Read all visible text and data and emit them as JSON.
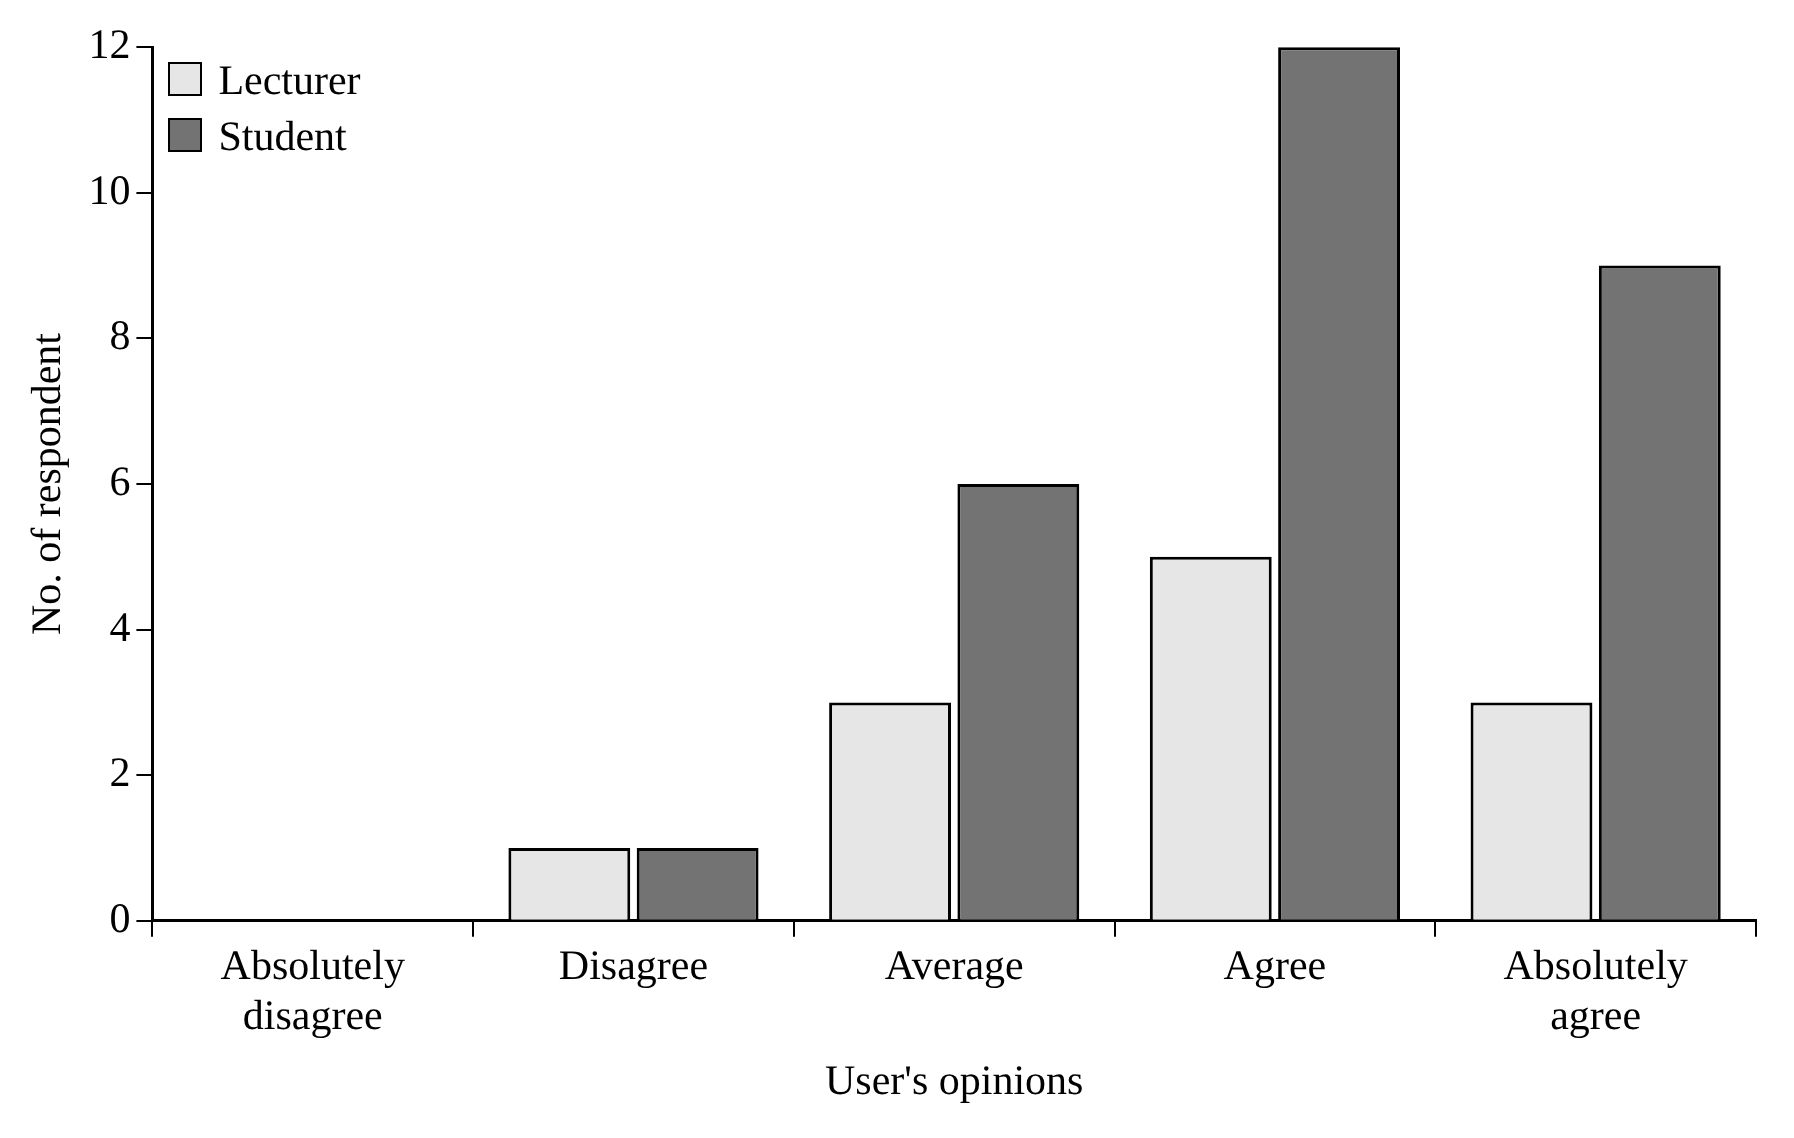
{
  "chart_data": {
    "type": "bar",
    "xlabel": "User's opinions",
    "ylabel": "No. of respondent",
    "categories": [
      "Absolutely disagree",
      "Disagree",
      "Average",
      "Agree",
      "Absolutely agree"
    ],
    "series": [
      {
        "name": "Lecturer",
        "color": "#e6e6e6",
        "values": [
          0,
          1,
          3,
          5,
          3
        ]
      },
      {
        "name": "Student",
        "color": "#737373",
        "values": [
          0,
          1,
          6,
          12,
          9
        ]
      }
    ],
    "ylim": [
      0,
      12
    ],
    "yticks": [
      0,
      2,
      4,
      6,
      8,
      10,
      12
    ],
    "grid": false,
    "legend": "top left"
  }
}
